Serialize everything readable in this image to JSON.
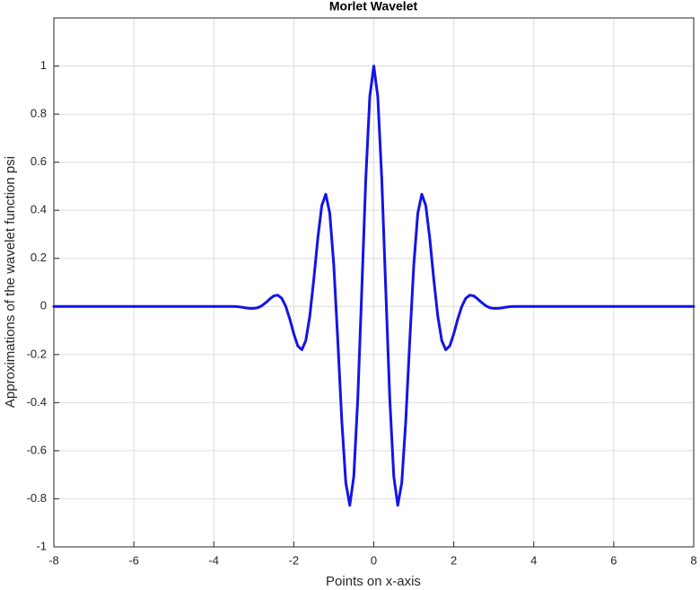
{
  "chart_data": {
    "type": "line",
    "title": "Morlet Wavelet",
    "xlabel": "Points on x-axis",
    "ylabel": "Approximations of the wavelet function psi",
    "x": [
      -8,
      -3.6,
      -3.5,
      -3.4,
      -3.3,
      -3.2,
      -3.1,
      -3.0,
      -2.9,
      -2.8,
      -2.7,
      -2.6,
      -2.5,
      -2.4,
      -2.3,
      -2.2,
      -2.1,
      -2.0,
      -1.9,
      -1.8,
      -1.7,
      -1.6,
      -1.5,
      -1.4,
      -1.3,
      -1.2,
      -1.1,
      -1.0,
      -0.9,
      -0.8,
      -0.7,
      -0.6,
      -0.5,
      -0.4,
      -0.3,
      -0.2,
      -0.1,
      0,
      0.1,
      0.2,
      0.3,
      0.4,
      0.5,
      0.6,
      0.7,
      0.8,
      0.9,
      1.0,
      1.1,
      1.2,
      1.3,
      1.4,
      1.5,
      1.6,
      1.7,
      1.8,
      1.9,
      2.0,
      2.1,
      2.2,
      2.3,
      2.4,
      2.5,
      2.6,
      2.7,
      2.8,
      2.9,
      3.0,
      3.1,
      3.2,
      3.3,
      3.4,
      3.5,
      3.6,
      8
    ],
    "values": [
      0,
      0,
      0,
      -0.001,
      -0.003,
      -0.006,
      -0.008,
      -0.008,
      -0.005,
      0.003,
      0.016,
      0.031,
      0.044,
      0.047,
      0.034,
      0,
      -0.052,
      -0.114,
      -0.164,
      -0.18,
      -0.142,
      -0.04,
      0.113,
      0.283,
      0.42,
      0.467,
      0.387,
      0.172,
      -0.141,
      -0.475,
      -0.733,
      -0.827,
      -0.707,
      -0.384,
      0.068,
      0.53,
      0.873,
      1,
      0.873,
      0.53,
      0.068,
      -0.384,
      -0.707,
      -0.827,
      -0.733,
      -0.475,
      -0.141,
      0.172,
      0.387,
      0.467,
      0.42,
      0.283,
      0.113,
      -0.04,
      -0.142,
      -0.18,
      -0.164,
      -0.114,
      -0.052,
      0,
      0.034,
      0.047,
      0.044,
      0.031,
      0.016,
      0.003,
      -0.005,
      -0.008,
      -0.008,
      -0.006,
      -0.003,
      -0.001,
      0,
      0,
      0
    ],
    "color": "#1414e6",
    "xlim": [
      -8,
      8
    ],
    "xticks": [
      -8,
      -6,
      -4,
      -2,
      0,
      2,
      4,
      6,
      8
    ],
    "ylim": [
      -1,
      1.2
    ],
    "yticks": [
      -1,
      -0.8,
      -0.6,
      -0.4,
      -0.2,
      0,
      0.2,
      0.4,
      0.6,
      0.8,
      1
    ],
    "grid": true
  }
}
